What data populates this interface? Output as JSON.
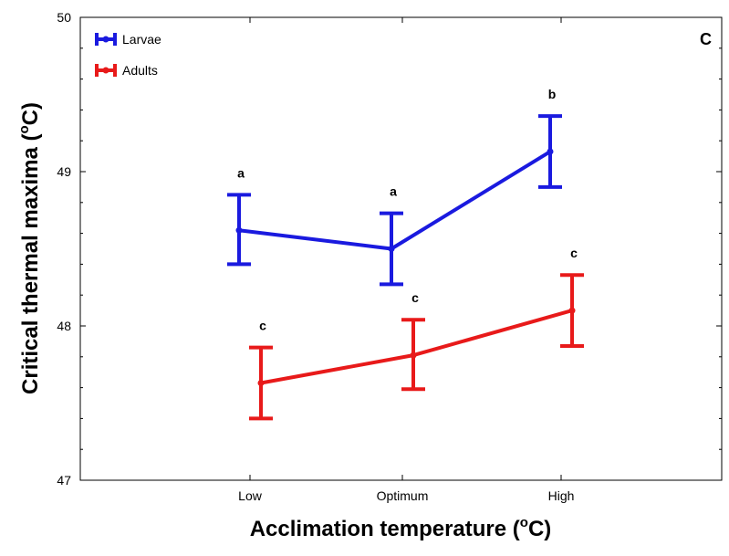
{
  "chart_data": {
    "type": "line",
    "panel_label": "C",
    "xlabel": {
      "text": "Acclimation temperature (",
      "sup": "o",
      "unit": "C)"
    },
    "ylabel": {
      "text": "Critical thermal maxima (",
      "sup": "o",
      "unit": "C)"
    },
    "categories": [
      "Low",
      "Optimum",
      "High"
    ],
    "ylim": [
      47,
      50
    ],
    "yticks": [
      "47",
      "48",
      "49",
      "50"
    ],
    "grid": false,
    "legend_position": "top-left",
    "series": [
      {
        "name": "Larvae",
        "color": "#1a1adf",
        "values": [
          48.62,
          48.5,
          49.13
        ],
        "lower": [
          48.4,
          48.27,
          48.9
        ],
        "upper": [
          48.85,
          48.73,
          49.36
        ],
        "letters": [
          "a",
          "a",
          "b"
        ]
      },
      {
        "name": "Adults",
        "color": "#e81a1a",
        "values": [
          47.63,
          47.81,
          48.1
        ],
        "lower": [
          47.4,
          47.59,
          47.87
        ],
        "upper": [
          47.86,
          48.04,
          48.33
        ],
        "letters": [
          "c",
          "c",
          "c"
        ]
      }
    ]
  }
}
